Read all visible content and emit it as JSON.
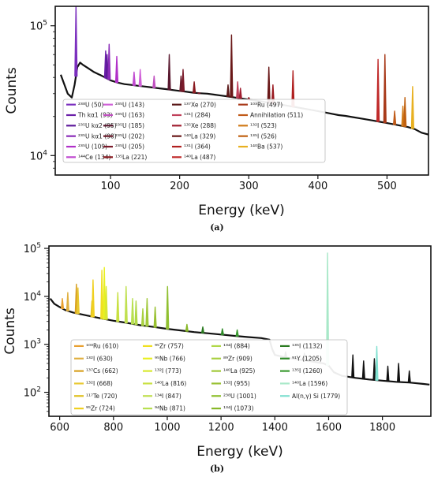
{
  "chart_data": [
    {
      "panel": "(a)",
      "type": "line",
      "xlabel": "Energy (keV)",
      "ylabel": "Counts",
      "xlim": [
        20,
        560
      ],
      "ylim_exp": [
        3.85,
        5.15
      ],
      "y_scale": "log",
      "x_ticks": [
        100,
        200,
        300,
        400,
        500
      ],
      "y_ticks": [
        {
          "exp": 4,
          "base": "10",
          "sup": "4"
        },
        {
          "exp": 5,
          "base": "10",
          "sup": "5"
        }
      ],
      "legend_position": "lower-center",
      "background": {
        "name": "spectrum",
        "color": "#111111",
        "points": [
          [
            28,
            42000
          ],
          [
            38,
            30000
          ],
          [
            44,
            28000
          ],
          [
            48,
            35000
          ],
          [
            52,
            48000
          ],
          [
            56,
            52000
          ],
          [
            60,
            50000
          ],
          [
            68,
            47000
          ],
          [
            76,
            44000
          ],
          [
            84,
            42000
          ],
          [
            92,
            40000
          ],
          [
            100,
            38000
          ],
          [
            110,
            36500
          ],
          [
            120,
            35500
          ],
          [
            130,
            35000
          ],
          [
            140,
            34500
          ],
          [
            150,
            34000
          ],
          [
            160,
            33500
          ],
          [
            170,
            33000
          ],
          [
            180,
            32500
          ],
          [
            190,
            32000
          ],
          [
            200,
            31500
          ],
          [
            210,
            31000
          ],
          [
            220,
            30500
          ],
          [
            230,
            30200
          ],
          [
            240,
            30000
          ],
          [
            250,
            29500
          ],
          [
            260,
            29000
          ],
          [
            270,
            28500
          ],
          [
            280,
            28000
          ],
          [
            290,
            27500
          ],
          [
            300,
            27000
          ],
          [
            310,
            26500
          ],
          [
            320,
            26000
          ],
          [
            330,
            25500
          ],
          [
            340,
            25000
          ],
          [
            350,
            24500
          ],
          [
            360,
            24000
          ],
          [
            370,
            23500
          ],
          [
            380,
            23000
          ],
          [
            390,
            22500
          ],
          [
            400,
            22000
          ],
          [
            410,
            21500
          ],
          [
            420,
            21000
          ],
          [
            430,
            20500
          ],
          [
            440,
            20200
          ],
          [
            450,
            19800
          ],
          [
            460,
            19400
          ],
          [
            470,
            19000
          ],
          [
            480,
            18600
          ],
          [
            490,
            18200
          ],
          [
            500,
            17800
          ],
          [
            510,
            17400
          ],
          [
            520,
            17000
          ],
          [
            530,
            16600
          ],
          [
            540,
            16000
          ],
          [
            550,
            15000
          ],
          [
            560,
            14500
          ]
        ]
      },
      "series": [
        {
          "name": "²³⁸U (50)",
          "energy": 50,
          "color": "#7b2fbe",
          "peak": 145000
        },
        {
          "name": "Th kα1 (93)",
          "energy": 93,
          "color": "#6a1fa8",
          "peak": 64000
        },
        {
          "name": "²³⁵U kα2 (95)",
          "energy": 95,
          "color": "#5e1a9a",
          "peak": 60000
        },
        {
          "name": "²³⁵U kα1 (98)",
          "energy": 98,
          "color": "#8a2bb8",
          "peak": 72000
        },
        {
          "name": "²³⁵U (109)",
          "energy": 109,
          "color": "#b030c8",
          "peak": 58000
        },
        {
          "name": "¹⁴⁴Ce (134)",
          "energy": 134,
          "color": "#c04ad0",
          "peak": 44000
        },
        {
          "name": "²³⁵U (143)",
          "energy": 143,
          "color": "#d060d8",
          "peak": 46000
        },
        {
          "name": "²³⁵U (163)",
          "energy": 163,
          "color": "#c050c0",
          "peak": 41000
        },
        {
          "name": "²³⁵U (185)",
          "energy": 185,
          "color": "#5a1a30",
          "peak": 60000
        },
        {
          "name": "²³⁵U (202)",
          "energy": 202,
          "color": "#6a1a2a",
          "peak": 41000
        },
        {
          "name": "²³⁵U (205)",
          "energy": 205,
          "color": "#7a1a2a",
          "peak": 46000
        },
        {
          "name": "¹³⁵La (221)",
          "energy": 221,
          "color": "#8a1a20",
          "peak": 37000
        },
        {
          "name": "¹³⁷Xe (270)",
          "energy": 270,
          "color": "#5a1818",
          "peak": 35000
        },
        {
          "name": "¹³¹I (284)",
          "energy": 284,
          "color": "#c0405a",
          "peak": 37000
        },
        {
          "name": "¹³⁵Xe (288)",
          "energy": 288,
          "color": "#a01e30",
          "peak": 33000
        },
        {
          "name": "¹⁴⁰La (329)",
          "energy": 329,
          "color": "#6a1818",
          "peak": 48000
        },
        {
          "name": "¹³¹I (364)",
          "energy": 364,
          "color": "#b02020",
          "peak": 45000
        },
        {
          "name": "¹⁴⁰La (487)",
          "energy": 487,
          "color": "#c02a2a",
          "peak": 55000
        },
        {
          "name": "¹⁰³Ru (497)",
          "energy": 497,
          "color": "#a83a1a",
          "peak": 60000
        },
        {
          "name": "Annihilation (511)",
          "energy": 511,
          "color": "#c05a18",
          "peak": 22000
        },
        {
          "name": "¹³²I (523)",
          "energy": 523,
          "color": "#d07a18",
          "peak": 24000
        },
        {
          "name": "¹³⁵I (526)",
          "energy": 526,
          "color": "#c06010",
          "peak": 28000
        },
        {
          "name": "¹⁴⁰Ba (537)",
          "energy": 537,
          "color": "#e8b020",
          "peak": 34000
        }
      ],
      "extra_peaks": [
        {
          "energy": 186,
          "color": "#5a1a30",
          "peak": 33000
        },
        {
          "energy": 228,
          "color": "#7a1a2a",
          "peak": 30000
        },
        {
          "energy": 275,
          "color": "#6a1818",
          "peak": 85000
        },
        {
          "energy": 300,
          "color": "#8a1a20",
          "peak": 28000
        },
        {
          "energy": 317,
          "color": "#111111",
          "peak": 26000
        },
        {
          "energy": 335,
          "color": "#9a1a20",
          "peak": 35000
        }
      ]
    },
    {
      "panel": "(b)",
      "type": "line",
      "xlabel": "Energy (keV)",
      "ylabel": "Counts",
      "xlim": [
        560,
        1980
      ],
      "ylim_exp": [
        1.5,
        5.05
      ],
      "y_scale": "log",
      "x_ticks": [
        600,
        800,
        1000,
        1200,
        1400,
        1600,
        1800
      ],
      "y_ticks": [
        {
          "exp": 2,
          "base": "10",
          "sup": "2"
        },
        {
          "exp": 3,
          "base": "10",
          "sup": "3"
        },
        {
          "exp": 4,
          "base": "10",
          "sup": "4"
        },
        {
          "exp": 5,
          "base": "10",
          "sup": "5"
        }
      ],
      "legend_position": "lower-left",
      "background": {
        "name": "spectrum",
        "color": "#111111",
        "points": [
          [
            565,
            9000
          ],
          [
            580,
            7000
          ],
          [
            600,
            6000
          ],
          [
            620,
            5200
          ],
          [
            650,
            4600
          ],
          [
            700,
            4000
          ],
          [
            750,
            3500
          ],
          [
            800,
            3100
          ],
          [
            850,
            2800
          ],
          [
            900,
            2500
          ],
          [
            950,
            2300
          ],
          [
            1000,
            2100
          ],
          [
            1050,
            1950
          ],
          [
            1100,
            1800
          ],
          [
            1150,
            1700
          ],
          [
            1200,
            1600
          ],
          [
            1250,
            1500
          ],
          [
            1300,
            1420
          ],
          [
            1350,
            1350
          ],
          [
            1380,
            1250
          ],
          [
            1390,
            800
          ],
          [
            1400,
            600
          ],
          [
            1450,
            520
          ],
          [
            1500,
            470
          ],
          [
            1550,
            430
          ],
          [
            1580,
            400
          ],
          [
            1600,
            360
          ],
          [
            1620,
            260
          ],
          [
            1650,
            220
          ],
          [
            1700,
            200
          ],
          [
            1750,
            185
          ],
          [
            1800,
            175
          ],
          [
            1850,
            165
          ],
          [
            1900,
            160
          ],
          [
            1950,
            150
          ],
          [
            1975,
            145
          ]
        ]
      },
      "series": [
        {
          "name": "¹⁰³Ru (610)",
          "energy": 610,
          "color": "#e8a030",
          "peak": 9000
        },
        {
          "name": "¹³²I (630)",
          "energy": 630,
          "color": "#e0b040",
          "peak": 12000
        },
        {
          "name": "¹³⁷Cs (662)",
          "energy": 662,
          "color": "#d8a020",
          "peak": 18000
        },
        {
          "name": "¹³²I (668)",
          "energy": 668,
          "color": "#e8c830",
          "peak": 15000
        },
        {
          "name": "¹¹⁷Te (720)",
          "energy": 720,
          "color": "#e0c020",
          "peak": 8000
        },
        {
          "name": "⁹⁵Zr (724)",
          "energy": 724,
          "color": "#f0d020",
          "peak": 22000
        },
        {
          "name": "⁹⁵Zr (757)",
          "energy": 757,
          "color": "#f0e020",
          "peak": 35000
        },
        {
          "name": "⁹⁵Nb (766)",
          "energy": 766,
          "color": "#e8f020",
          "peak": 40000
        },
        {
          "name": "¹³²I (773)",
          "energy": 773,
          "color": "#d8e830",
          "peak": 16000
        },
        {
          "name": "¹⁴⁰La (816)",
          "energy": 816,
          "color": "#c8e040",
          "peak": 12000
        },
        {
          "name": "¹³⁴I (847)",
          "energy": 847,
          "color": "#c0e050",
          "peak": 16000
        },
        {
          "name": "⁹⁴Nb (871)",
          "energy": 871,
          "color": "#b8e050",
          "peak": 9000
        },
        {
          "name": "¹³⁴I (884)",
          "energy": 884,
          "color": "#b0d848",
          "peak": 8000
        },
        {
          "name": "⁸⁹Zr (909)",
          "energy": 909,
          "color": "#a8d040",
          "peak": 5500
        },
        {
          "name": "¹⁴⁰La (925)",
          "energy": 925,
          "color": "#a0c838",
          "peak": 9000
        },
        {
          "name": "¹³²I (955)",
          "energy": 955,
          "color": "#98c030",
          "peak": 6000
        },
        {
          "name": "²³⁸U (1001)",
          "energy": 1001,
          "color": "#90c030",
          "peak": 16000
        },
        {
          "name": "¹³⁴I (1073)",
          "energy": 1073,
          "color": "#88b828",
          "peak": 2600
        },
        {
          "name": "¹³⁵I (1132)",
          "energy": 1132,
          "color": "#2a7a20",
          "peak": 2300
        },
        {
          "name": "⁹¹Y (1205)",
          "energy": 1205,
          "color": "#2e8a28",
          "peak": 2100
        },
        {
          "name": "¹³⁵I (1260)",
          "energy": 1260,
          "color": "#3a9a30",
          "peak": 2000
        },
        {
          "name": "¹⁴⁰La (1596)",
          "energy": 1596,
          "color": "#a8e8c8",
          "peak": 80000
        },
        {
          "name": "Al(n,γ) Si (1779)",
          "energy": 1779,
          "color": "#80e0d0",
          "peak": 900
        }
      ],
      "extra_peaks": [
        {
          "energy": 1440,
          "color": "#111111",
          "peak": 700
        },
        {
          "energy": 1510,
          "color": "#111111",
          "peak": 650
        },
        {
          "energy": 1690,
          "color": "#111111",
          "peak": 600
        },
        {
          "energy": 1730,
          "color": "#111111",
          "peak": 450
        },
        {
          "energy": 1770,
          "color": "#111111",
          "peak": 500
        },
        {
          "energy": 1820,
          "color": "#111111",
          "peak": 350
        },
        {
          "energy": 1860,
          "color": "#111111",
          "peak": 400
        },
        {
          "energy": 1900,
          "color": "#111111",
          "peak": 280
        }
      ]
    }
  ]
}
